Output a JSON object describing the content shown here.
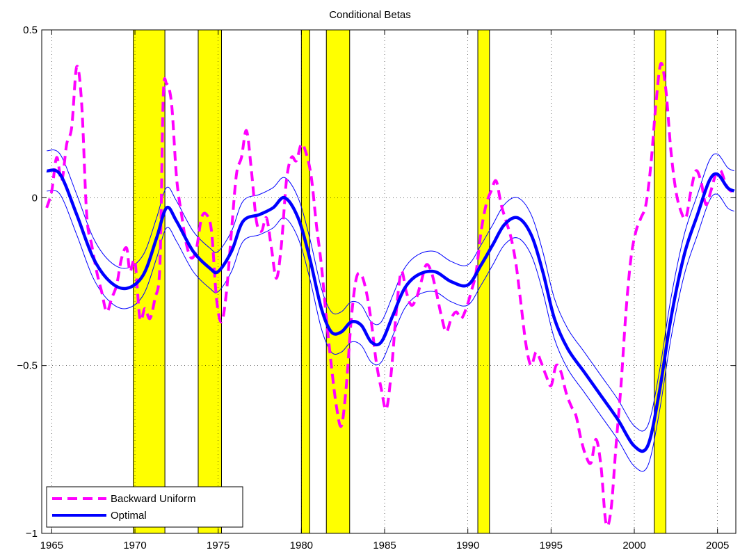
{
  "chart_data": {
    "type": "line",
    "title": "Conditional Betas",
    "xlabel": "",
    "ylabel": "",
    "xlim": [
      1964.4,
      2006.1
    ],
    "ylim": [
      -1,
      0.5
    ],
    "x_ticks": [
      1965,
      1970,
      1975,
      1980,
      1985,
      1990,
      1995,
      2000,
      2005
    ],
    "y_ticks": [
      -1,
      -0.5,
      0,
      0.5
    ],
    "y_tick_labels": [
      "−1",
      "−0.5",
      "0",
      "0.5"
    ],
    "grid": true,
    "legend_position": "bottom-left",
    "recessions": [
      [
        1969.9,
        1971.8
      ],
      [
        1973.8,
        1975.2
      ],
      [
        1980.0,
        1980.5
      ],
      [
        1981.5,
        1982.9
      ],
      [
        1990.6,
        1991.3
      ],
      [
        2001.2,
        2001.9
      ]
    ],
    "recession_color": "#ffff00",
    "series": [
      {
        "name": "Backward Uniform",
        "color": "#ff00ff",
        "style": "dashed",
        "x": [
          1964.7,
          1965.0,
          1965.3,
          1965.6,
          1965.9,
          1966.2,
          1966.5,
          1966.8,
          1967.1,
          1967.4,
          1967.7,
          1968.0,
          1968.3,
          1968.6,
          1968.9,
          1969.2,
          1969.5,
          1969.7,
          1970.0,
          1970.3,
          1970.6,
          1970.9,
          1971.2,
          1971.5,
          1971.7,
          1971.9,
          1972.2,
          1972.5,
          1972.8,
          1973.1,
          1973.4,
          1973.7,
          1974.0,
          1974.3,
          1974.6,
          1974.9,
          1975.2,
          1975.5,
          1975.8,
          1976.1,
          1976.4,
          1976.7,
          1977.0,
          1977.3,
          1977.6,
          1977.9,
          1978.2,
          1978.5,
          1978.8,
          1979.1,
          1979.4,
          1979.7,
          1980.0,
          1980.3,
          1980.6,
          1980.9,
          1981.2,
          1981.5,
          1981.8,
          1982.1,
          1982.4,
          1982.7,
          1983.0,
          1983.3,
          1983.6,
          1983.9,
          1984.2,
          1984.5,
          1984.8,
          1985.1,
          1985.4,
          1985.7,
          1986.0,
          1986.3,
          1986.6,
          1986.9,
          1987.2,
          1987.5,
          1987.8,
          1988.1,
          1988.4,
          1988.7,
          1989.0,
          1989.3,
          1989.6,
          1989.9,
          1990.2,
          1990.5,
          1990.8,
          1991.1,
          1991.4,
          1991.7,
          1992.0,
          1992.3,
          1992.6,
          1992.9,
          1993.2,
          1993.5,
          1993.8,
          1994.1,
          1994.4,
          1994.7,
          1995.0,
          1995.3,
          1995.6,
          1995.9,
          1996.2,
          1996.5,
          1996.8,
          1997.1,
          1997.4,
          1997.7,
          1998.0,
          1998.3,
          1998.6,
          1998.9,
          1999.2,
          1999.5,
          1999.8,
          2000.1,
          2000.4,
          2000.7,
          2001.0,
          2001.3,
          2001.6,
          2001.9,
          2002.2,
          2002.5,
          2002.8,
          2003.1,
          2003.4,
          2003.7,
          2004.0,
          2004.3,
          2004.6,
          2004.9,
          2005.2,
          2005.5,
          2005.8,
          2006.0
        ],
        "y": [
          -0.03,
          0.02,
          0.12,
          0.05,
          0.16,
          0.21,
          0.39,
          0.28,
          -0.05,
          -0.14,
          -0.22,
          -0.28,
          -0.34,
          -0.3,
          -0.26,
          -0.18,
          -0.15,
          -0.22,
          -0.19,
          -0.36,
          -0.33,
          -0.36,
          -0.3,
          -0.2,
          0.3,
          0.34,
          0.28,
          0.06,
          -0.05,
          -0.14,
          -0.18,
          -0.15,
          -0.06,
          -0.05,
          -0.1,
          -0.3,
          -0.37,
          -0.28,
          -0.1,
          0.07,
          0.12,
          0.2,
          0.08,
          -0.07,
          -0.1,
          -0.06,
          -0.15,
          -0.24,
          -0.14,
          0.05,
          0.12,
          0.11,
          0.16,
          0.13,
          0.06,
          -0.08,
          -0.2,
          -0.36,
          -0.5,
          -0.62,
          -0.68,
          -0.56,
          -0.36,
          -0.24,
          -0.23,
          -0.28,
          -0.37,
          -0.49,
          -0.57,
          -0.63,
          -0.52,
          -0.34,
          -0.22,
          -0.28,
          -0.32,
          -0.3,
          -0.25,
          -0.2,
          -0.22,
          -0.28,
          -0.35,
          -0.4,
          -0.36,
          -0.34,
          -0.36,
          -0.33,
          -0.28,
          -0.22,
          -0.1,
          -0.02,
          0.02,
          0.05,
          -0.02,
          -0.07,
          -0.12,
          -0.2,
          -0.32,
          -0.44,
          -0.5,
          -0.46,
          -0.49,
          -0.53,
          -0.56,
          -0.5,
          -0.52,
          -0.58,
          -0.62,
          -0.65,
          -0.72,
          -0.77,
          -0.79,
          -0.72,
          -0.8,
          -0.97,
          -0.93,
          -0.74,
          -0.56,
          -0.34,
          -0.18,
          -0.1,
          -0.06,
          -0.02,
          0.1,
          0.28,
          0.4,
          0.32,
          0.14,
          0.02,
          -0.04,
          -0.06,
          0.02,
          0.08,
          0.05,
          -0.02,
          0.02,
          0.07,
          0.08,
          0.04,
          0.02,
          0.03
        ],
        "_note_x": "sampled points read from chart"
      },
      {
        "name": "Optimal",
        "color": "#0000ff",
        "style": "solid",
        "x": [
          1964.7,
          1965.5,
          1966.5,
          1967.5,
          1968.5,
          1969.5,
          1970.5,
          1971.3,
          1971.9,
          1972.5,
          1973.5,
          1974.5,
          1975.0,
          1975.8,
          1976.5,
          1977.5,
          1978.3,
          1979.0,
          1979.8,
          1980.5,
          1981.2,
          1981.8,
          1982.4,
          1983.0,
          1983.6,
          1984.2,
          1984.8,
          1985.5,
          1986.2,
          1987.0,
          1988.0,
          1989.0,
          1990.0,
          1990.8,
          1991.5,
          1992.2,
          1993.0,
          1993.8,
          1994.5,
          1995.2,
          1996.0,
          1997.0,
          1998.0,
          1999.0,
          2000.0,
          2000.8,
          2001.5,
          2002.2,
          2003.0,
          2003.8,
          2004.5,
          2005.0,
          2005.6,
          2006.0
        ],
        "y": [
          0.08,
          0.07,
          -0.05,
          -0.18,
          -0.25,
          -0.27,
          -0.23,
          -0.12,
          -0.03,
          -0.07,
          -0.16,
          -0.21,
          -0.22,
          -0.16,
          -0.07,
          -0.05,
          -0.03,
          0.0,
          -0.06,
          -0.18,
          -0.33,
          -0.4,
          -0.4,
          -0.37,
          -0.38,
          -0.43,
          -0.43,
          -0.35,
          -0.27,
          -0.23,
          -0.22,
          -0.25,
          -0.26,
          -0.2,
          -0.14,
          -0.08,
          -0.06,
          -0.11,
          -0.22,
          -0.36,
          -0.45,
          -0.52,
          -0.59,
          -0.66,
          -0.74,
          -0.74,
          -0.58,
          -0.36,
          -0.17,
          -0.05,
          0.05,
          0.07,
          0.03,
          0.02
        ]
      }
    ],
    "bands": {
      "color": "#0000ff",
      "upper_offset": 0.06,
      "lower_offset": 0.06
    }
  },
  "legend": {
    "items": [
      {
        "label": "Backward Uniform"
      },
      {
        "label": "Optimal"
      }
    ]
  }
}
